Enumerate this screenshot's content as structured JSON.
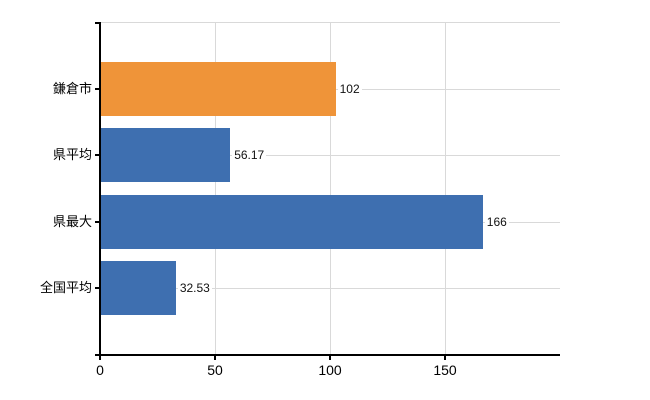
{
  "chart_data": {
    "type": "bar",
    "orientation": "horizontal",
    "title": "",
    "xlabel": "",
    "ylabel": "",
    "categories": [
      "鎌倉市",
      "県平均",
      "県最大",
      "全国平均"
    ],
    "values": [
      102,
      56.17,
      166,
      32.53
    ],
    "value_labels": [
      "102",
      "56.17",
      "166",
      "32.53"
    ],
    "series": [
      {
        "name": "鎌倉市",
        "value": 102,
        "color": "#EF9439"
      },
      {
        "name": "県平均",
        "value": 56.17,
        "color": "#3E6FB0"
      },
      {
        "name": "県最大",
        "value": 166,
        "color": "#3E6FB0"
      },
      {
        "name": "全国平均",
        "value": 32.53,
        "color": "#3E6FB0"
      }
    ],
    "bar_colors": [
      "#EF9439",
      "#3E6FB0",
      "#3E6FB0",
      "#3E6FB0"
    ],
    "highlight_category": "鎌倉市",
    "xlim": [
      0,
      200
    ],
    "x_ticks": [
      0,
      50,
      100,
      150
    ],
    "grid": true,
    "legend": false
  },
  "colors": {
    "bar_orange": "#EF9439",
    "bar_blue": "#3E6FB0",
    "gridline": "#D9D9D9",
    "axis": "#000000",
    "background": "#FFFFFF",
    "value_text": "#111111"
  }
}
